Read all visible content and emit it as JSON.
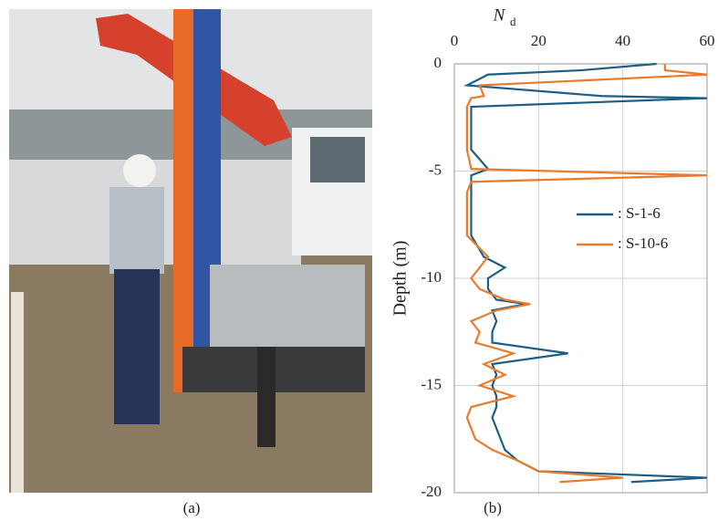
{
  "chart_data": {
    "type": "line",
    "xlabel": "N",
    "xlabel_sub": "d",
    "ylabel": "Depth (m)",
    "captions": [
      "(a)",
      "(b)"
    ],
    "xlim": [
      0,
      60
    ],
    "xticks": [
      0,
      20,
      40,
      60
    ],
    "ylim": [
      -20,
      0
    ],
    "yticks": [
      0,
      -5,
      -10,
      -15,
      -20
    ],
    "grid": true,
    "legend": "right",
    "depth": [
      0,
      -0.3,
      -0.5,
      -1,
      -1.5,
      -1.6,
      -2,
      -3,
      -4,
      -4.9,
      -5.2,
      -5.5,
      -6,
      -7,
      -8,
      -9,
      -9.5,
      -10,
      -10.5,
      -11,
      -11.2,
      -11.5,
      -12,
      -12.5,
      -13,
      -13.5,
      -14,
      -14.5,
      -15,
      -15.5,
      -16,
      -16.5,
      -17,
      -17.5,
      -18,
      -18.5,
      -19,
      -19.3,
      -19.5
    ],
    "series": [
      {
        "name": ": S-1-6",
        "color": "#1b5e86",
        "values": [
          48,
          30,
          8,
          3,
          35,
          60,
          4,
          4,
          4,
          8,
          4,
          4,
          4,
          4,
          4,
          7,
          12,
          8,
          8,
          10,
          17,
          9,
          10,
          9,
          9,
          27,
          9,
          10,
          9,
          10,
          10,
          9,
          10,
          11,
          12,
          15,
          20,
          60,
          42
        ]
      },
      {
        "name": ": S-10-6",
        "color": "#ea7a2c",
        "values": [
          50,
          50,
          60,
          6,
          7,
          4,
          3,
          3,
          3,
          4,
          60,
          4,
          3,
          3,
          3,
          8,
          6,
          4,
          6,
          12,
          18,
          10,
          4,
          6,
          5,
          14,
          7,
          12,
          6,
          14,
          4,
          3,
          4,
          5,
          9,
          15,
          20,
          40,
          25
        ]
      }
    ]
  }
}
